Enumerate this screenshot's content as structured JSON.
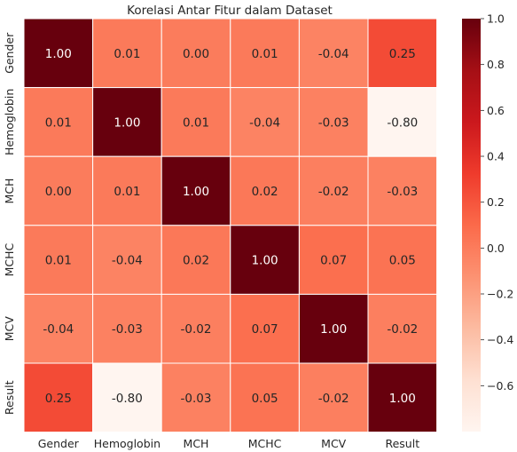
{
  "chart_data": {
    "type": "heatmap",
    "title": "Korelasi Antar Fitur dalam Dataset",
    "x_categories": [
      "Gender",
      "Hemoglobin",
      "MCH",
      "MCHC",
      "MCV",
      "Result"
    ],
    "y_categories": [
      "Gender",
      "Hemoglobin",
      "MCH",
      "MCHC",
      "MCV",
      "Result"
    ],
    "values": [
      [
        1.0,
        0.01,
        0.0,
        0.01,
        -0.04,
        0.25
      ],
      [
        0.01,
        1.0,
        0.01,
        -0.04,
        -0.03,
        -0.8
      ],
      [
        0.0,
        0.01,
        1.0,
        0.02,
        -0.02,
        -0.03
      ],
      [
        0.01,
        -0.04,
        0.02,
        1.0,
        0.07,
        0.05
      ],
      [
        -0.04,
        -0.03,
        -0.02,
        0.07,
        1.0,
        -0.02
      ],
      [
        0.25,
        -0.8,
        -0.03,
        0.05,
        -0.02,
        1.0
      ]
    ],
    "cell_labels": [
      [
        "1.00",
        "0.01",
        "0.00",
        "0.01",
        "-0.04",
        "0.25"
      ],
      [
        "0.01",
        "1.00",
        "0.01",
        "-0.04",
        "-0.03",
        "-0.80"
      ],
      [
        "0.00",
        "0.01",
        "1.00",
        "0.02",
        "-0.02",
        "-0.03"
      ],
      [
        "0.01",
        "-0.04",
        "0.02",
        "1.00",
        "0.07",
        "0.05"
      ],
      [
        "-0.04",
        "-0.03",
        "-0.02",
        "0.07",
        "1.00",
        "-0.02"
      ],
      [
        "0.25",
        "-0.80",
        "-0.03",
        "0.05",
        "-0.02",
        "1.00"
      ]
    ],
    "colormap": "Reds",
    "colorbar": {
      "range": [
        -0.8,
        1.0
      ],
      "ticks": [
        1.0,
        0.8,
        0.6,
        0.4,
        0.2,
        0.0,
        -0.2,
        -0.4,
        -0.6
      ],
      "tick_labels": [
        "1.0",
        "0.8",
        "0.6",
        "0.4",
        "0.2",
        "0.0",
        "−0.2",
        "−0.4",
        "−0.6"
      ]
    },
    "grid": false,
    "legend": "colorbar-right"
  },
  "colors": {
    "low": "#fff5f0",
    "high": "#67000d",
    "text_dark": "#262626",
    "text_light": "#ffffff"
  }
}
